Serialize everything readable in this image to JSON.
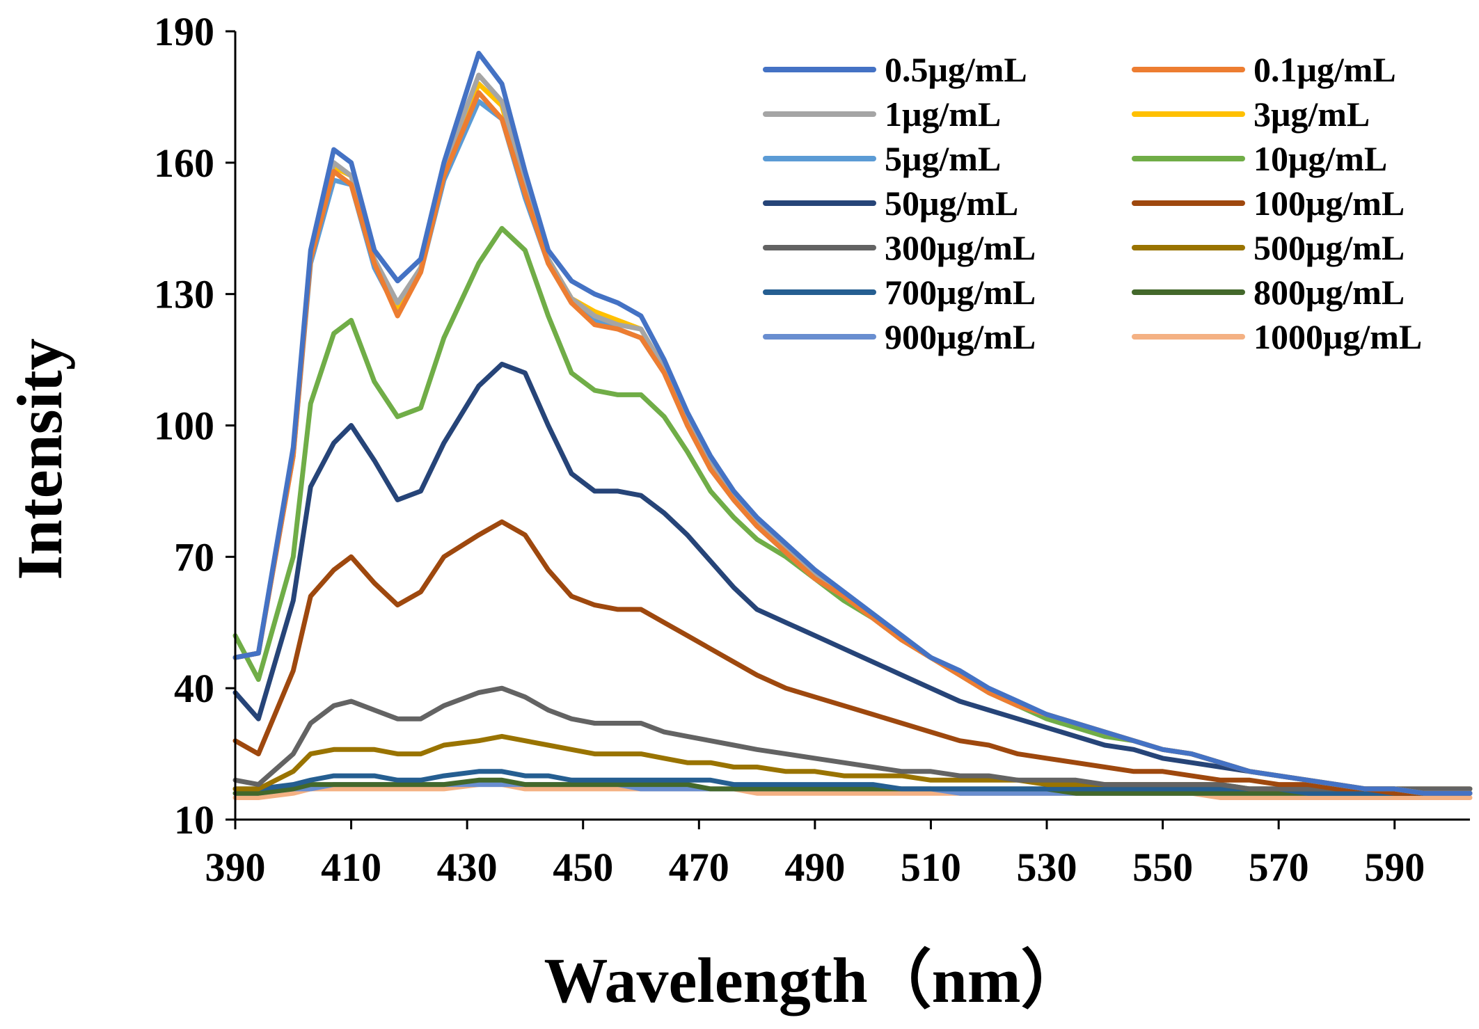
{
  "chart_data": {
    "type": "line",
    "xlabel": "Wavelength（nm）",
    "ylabel": "Intensity",
    "xlim": [
      390,
      603
    ],
    "ylim": [
      10,
      190
    ],
    "xticks": [
      390,
      410,
      430,
      450,
      470,
      490,
      510,
      530,
      550,
      570,
      590
    ],
    "yticks": [
      10,
      40,
      70,
      100,
      130,
      160,
      190
    ],
    "grid": false,
    "legend_position": "top-right",
    "x": [
      390,
      394,
      400,
      403,
      407,
      410,
      414,
      418,
      422,
      426,
      432,
      436,
      440,
      444,
      448,
      452,
      456,
      460,
      464,
      468,
      472,
      476,
      480,
      485,
      490,
      495,
      500,
      505,
      510,
      515,
      520,
      525,
      530,
      535,
      540,
      545,
      550,
      555,
      560,
      565,
      570,
      575,
      580,
      585,
      590,
      595,
      600,
      603
    ],
    "series": [
      {
        "name": "0.5μg/mL",
        "color": "#4472C4",
        "values": [
          47,
          48,
          95,
          140,
          163,
          160,
          140,
          133,
          138,
          160,
          185,
          178,
          158,
          140,
          133,
          130,
          128,
          125,
          115,
          103,
          93,
          85,
          79,
          73,
          67,
          62,
          57,
          52,
          47,
          44,
          40,
          37,
          34,
          32,
          30,
          28,
          26,
          25,
          23,
          21,
          20,
          19,
          18,
          17,
          17,
          16,
          16,
          16
        ]
      },
      {
        "name": "0.1μg/mL",
        "color": "#ED7D31",
        "values": [
          47,
          48,
          93,
          138,
          158,
          155,
          137,
          125,
          135,
          157,
          176,
          170,
          153,
          137,
          128,
          123,
          122,
          120,
          112,
          100,
          90,
          83,
          77,
          71,
          65,
          61,
          56,
          51,
          47,
          43,
          39,
          36,
          34,
          32,
          30,
          28,
          26,
          25,
          23,
          21,
          20,
          19,
          18,
          17,
          17,
          16,
          16,
          16
        ]
      },
      {
        "name": "1μg/mL",
        "color": "#A5A5A5",
        "values": [
          47,
          48,
          94,
          139,
          160,
          157,
          138,
          128,
          136,
          159,
          180,
          174,
          155,
          138,
          129,
          125,
          123,
          122,
          113,
          101,
          91,
          84,
          78,
          72,
          66,
          61,
          56,
          51,
          47,
          43,
          39,
          36,
          34,
          32,
          30,
          28,
          26,
          25,
          23,
          21,
          20,
          19,
          18,
          17,
          17,
          16,
          16,
          16
        ]
      },
      {
        "name": "3μg/mL",
        "color": "#FFC000",
        "values": [
          47,
          48,
          94,
          138,
          159,
          157,
          138,
          127,
          136,
          158,
          178,
          173,
          154,
          138,
          129,
          126,
          124,
          122,
          113,
          101,
          91,
          84,
          78,
          72,
          66,
          61,
          56,
          51,
          47,
          43,
          39,
          36,
          34,
          32,
          30,
          28,
          26,
          25,
          23,
          21,
          20,
          19,
          18,
          17,
          17,
          16,
          16,
          16
        ]
      },
      {
        "name": "5μg/mL",
        "color": "#5B9BD5",
        "values": [
          47,
          48,
          93,
          137,
          156,
          155,
          136,
          126,
          135,
          156,
          174,
          170,
          152,
          137,
          128,
          124,
          122,
          120,
          112,
          100,
          90,
          83,
          77,
          71,
          65,
          61,
          56,
          51,
          47,
          43,
          39,
          36,
          34,
          32,
          30,
          28,
          26,
          25,
          23,
          21,
          20,
          19,
          18,
          17,
          17,
          16,
          16,
          16
        ]
      },
      {
        "name": "10μg/mL",
        "color": "#70AD47",
        "values": [
          52,
          42,
          70,
          105,
          121,
          124,
          110,
          102,
          104,
          120,
          137,
          145,
          140,
          125,
          112,
          108,
          107,
          107,
          102,
          94,
          85,
          79,
          74,
          70,
          65,
          60,
          56,
          51,
          47,
          43,
          39,
          36,
          33,
          31,
          29,
          28,
          26,
          25,
          23,
          21,
          20,
          19,
          18,
          17,
          17,
          16,
          16,
          16
        ]
      },
      {
        "name": "50μg/mL",
        "color": "#264478",
        "values": [
          39,
          33,
          60,
          86,
          96,
          100,
          92,
          83,
          85,
          96,
          109,
          114,
          112,
          100,
          89,
          85,
          85,
          84,
          80,
          75,
          69,
          63,
          58,
          55,
          52,
          49,
          46,
          43,
          40,
          37,
          35,
          33,
          31,
          29,
          27,
          26,
          24,
          23,
          22,
          21,
          20,
          19,
          18,
          17,
          17,
          16,
          16,
          16
        ]
      },
      {
        "name": "100μg/mL",
        "color": "#9E480E",
        "values": [
          28,
          25,
          44,
          61,
          67,
          70,
          64,
          59,
          62,
          70,
          75,
          78,
          75,
          67,
          61,
          59,
          58,
          58,
          55,
          52,
          49,
          46,
          43,
          40,
          38,
          36,
          34,
          32,
          30,
          28,
          27,
          25,
          24,
          23,
          22,
          21,
          21,
          20,
          19,
          19,
          18,
          18,
          17,
          17,
          16,
          16,
          16,
          16
        ]
      },
      {
        "name": "300μg/mL",
        "color": "#636363",
        "values": [
          19,
          18,
          25,
          32,
          36,
          37,
          35,
          33,
          33,
          36,
          39,
          40,
          38,
          35,
          33,
          32,
          32,
          32,
          30,
          29,
          28,
          27,
          26,
          25,
          24,
          23,
          22,
          21,
          21,
          20,
          20,
          19,
          19,
          19,
          18,
          18,
          18,
          18,
          18,
          17,
          17,
          17,
          17,
          17,
          17,
          17,
          17,
          17
        ]
      },
      {
        "name": "500μg/mL",
        "color": "#997300",
        "values": [
          17,
          17,
          21,
          25,
          26,
          26,
          26,
          25,
          25,
          27,
          28,
          29,
          28,
          27,
          26,
          25,
          25,
          25,
          24,
          23,
          23,
          22,
          22,
          21,
          21,
          20,
          20,
          20,
          19,
          19,
          19,
          19,
          18,
          18,
          18,
          18,
          18,
          18,
          18,
          17,
          17,
          17,
          17,
          17,
          17,
          17,
          17,
          17
        ]
      },
      {
        "name": "700μg/mL",
        "color": "#255E91",
        "values": [
          17,
          17,
          18,
          19,
          20,
          20,
          20,
          19,
          19,
          20,
          21,
          21,
          20,
          20,
          19,
          19,
          19,
          19,
          19,
          19,
          19,
          18,
          18,
          18,
          18,
          18,
          18,
          17,
          17,
          17,
          17,
          17,
          17,
          17,
          17,
          17,
          17,
          17,
          17,
          17,
          17,
          16,
          16,
          16,
          16,
          16,
          16,
          16
        ]
      },
      {
        "name": "800μg/mL",
        "color": "#43682B",
        "values": [
          16,
          16,
          17,
          18,
          18,
          18,
          18,
          18,
          18,
          18,
          19,
          19,
          18,
          18,
          18,
          18,
          18,
          18,
          18,
          18,
          17,
          17,
          17,
          17,
          17,
          17,
          17,
          17,
          17,
          17,
          17,
          17,
          17,
          16,
          16,
          16,
          16,
          16,
          16,
          16,
          16,
          16,
          16,
          16,
          16,
          16,
          16,
          16
        ]
      },
      {
        "name": "900μg/mL",
        "color": "#698ED0",
        "values": [
          16,
          16,
          17,
          17,
          18,
          18,
          18,
          18,
          18,
          18,
          18,
          18,
          18,
          18,
          18,
          18,
          18,
          17,
          17,
          17,
          17,
          17,
          17,
          17,
          17,
          17,
          17,
          17,
          17,
          16,
          16,
          16,
          16,
          16,
          16,
          16,
          16,
          16,
          16,
          16,
          16,
          16,
          16,
          16,
          16,
          16,
          16,
          16
        ]
      },
      {
        "name": "1000μg/mL",
        "color": "#F4B183",
        "values": [
          15,
          15,
          16,
          17,
          17,
          17,
          17,
          17,
          17,
          17,
          18,
          18,
          17,
          17,
          17,
          17,
          17,
          17,
          17,
          17,
          17,
          17,
          16,
          16,
          16,
          16,
          16,
          16,
          16,
          16,
          16,
          16,
          16,
          16,
          16,
          16,
          16,
          16,
          15,
          15,
          15,
          15,
          15,
          15,
          15,
          15,
          15,
          15
        ]
      }
    ]
  }
}
